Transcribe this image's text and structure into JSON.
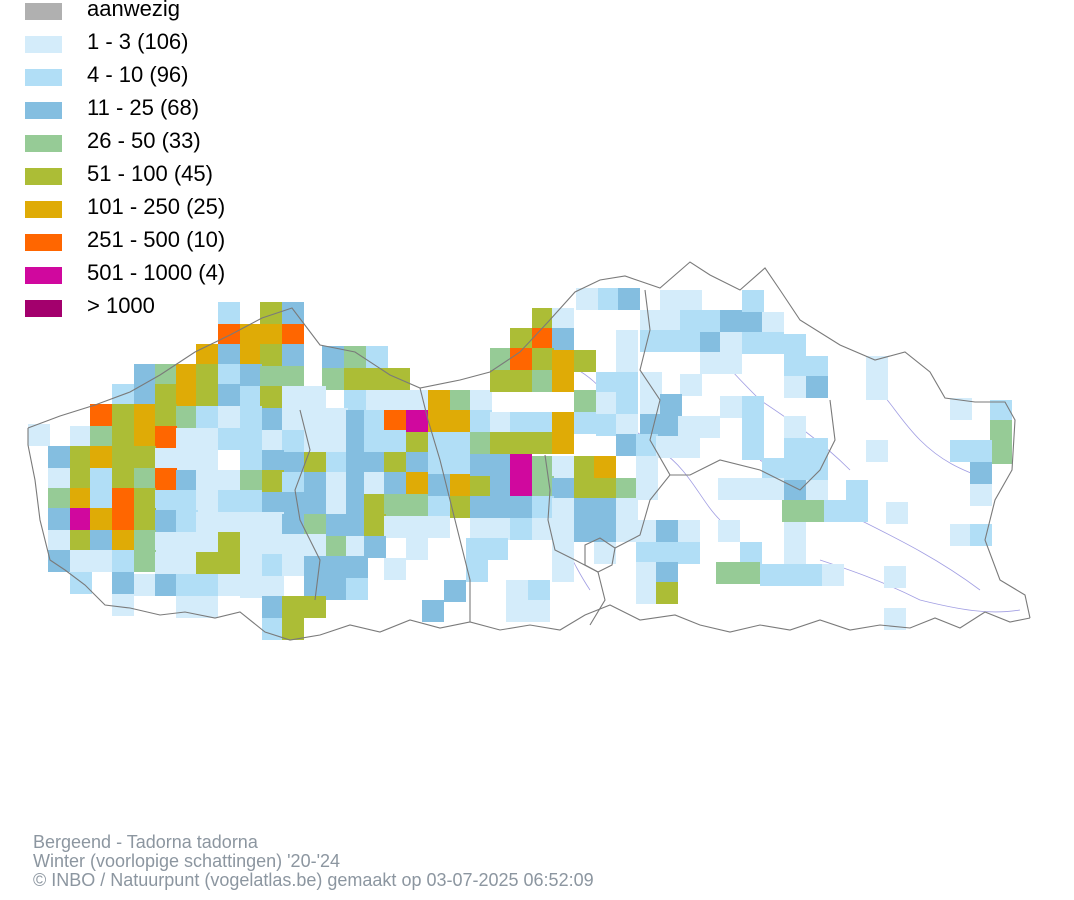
{
  "legend": {
    "items": [
      {
        "label": "aanwezig",
        "color": "#b0b0b0"
      },
      {
        "label": "1 - 3 (106)",
        "color": "#d4ecfa"
      },
      {
        "label": "4 - 10 (96)",
        "color": "#b1def6"
      },
      {
        "label": "11 - 25 (68)",
        "color": "#84bee0"
      },
      {
        "label": "26 - 50 (33)",
        "color": "#96cb96"
      },
      {
        "label": "51 - 100 (45)",
        "color": "#acbd36"
      },
      {
        "label": "101 - 250 (25)",
        "color": "#dfab06"
      },
      {
        "label": "251 - 500 (10)",
        "color": "#ff6600"
      },
      {
        "label": "501 - 1000 (4)",
        "color": "#d0089e"
      },
      {
        "label": "> 1000",
        "color": "#a3006d"
      }
    ]
  },
  "footer": {
    "line1": "Bergeend - Tadorna tadorna",
    "line2": "Winter (voorlopige schattingen) '20-'24",
    "line3": "© INBO / Natuurpunt (vogelatlas.be) gemaakt op 03-07-2025 06:52:09"
  }
}
